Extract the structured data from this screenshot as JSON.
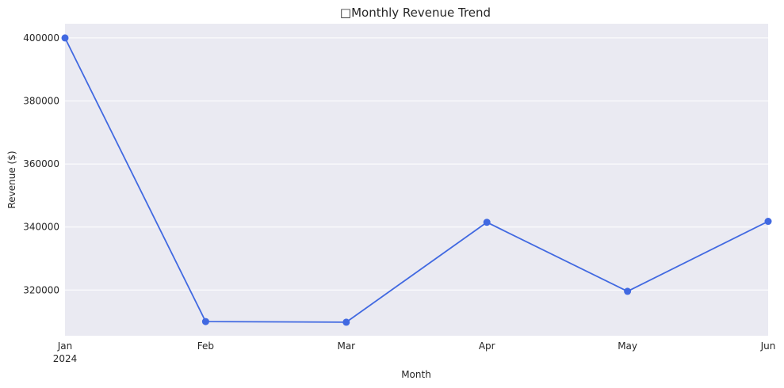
{
  "chart_data": {
    "type": "line",
    "title": "Monthly Revenue Trend",
    "title_glyph": "□",
    "xlabel": "Month",
    "ylabel": "Revenue ($)",
    "categories": [
      "Jan",
      "Feb",
      "Mar",
      "Apr",
      "May",
      "Jun"
    ],
    "year_label": "2024",
    "series": [
      {
        "values": [
          400000,
          310000,
          309800,
          341500,
          319600,
          341800
        ]
      }
    ],
    "ylim": [
      305500,
      404500
    ],
    "yticks": [
      320000,
      340000,
      360000,
      380000,
      400000
    ],
    "grid": true,
    "colors": {
      "line": "#4169e1",
      "plot_background": "#eaeaf2",
      "grid": "#ffffff",
      "text": "#262626"
    }
  }
}
